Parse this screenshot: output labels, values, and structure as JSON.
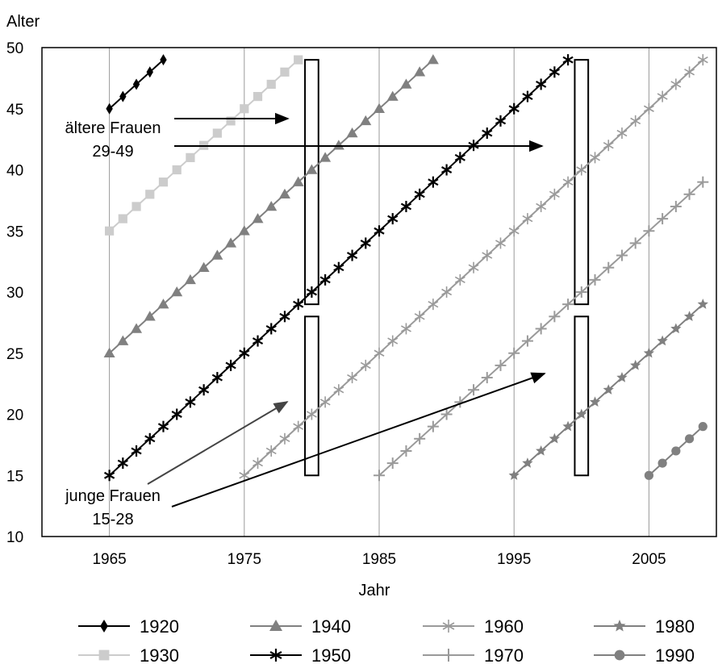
{
  "chart_data": {
    "type": "line",
    "title": "",
    "xlabel": "Jahr",
    "ylabel": "Alter",
    "xlim": [
      1960,
      2010
    ],
    "ylim": [
      10,
      50
    ],
    "xticks": [
      1965,
      1975,
      1985,
      1995,
      2005
    ],
    "yticks": [
      10,
      15,
      20,
      25,
      30,
      35,
      40,
      45,
      50
    ],
    "grid": "vertical",
    "legend_position": "bottom",
    "series": [
      {
        "name": "1920",
        "start_year": 1965,
        "end_year": 1969,
        "start_age": 45,
        "color": "#000000",
        "marker": "diamond"
      },
      {
        "name": "1930",
        "start_year": 1965,
        "end_year": 1979,
        "start_age": 35,
        "color": "#cccccc",
        "marker": "square"
      },
      {
        "name": "1940",
        "start_year": 1965,
        "end_year": 1989,
        "start_age": 25,
        "color": "#808080",
        "marker": "triangle"
      },
      {
        "name": "1950",
        "start_year": 1965,
        "end_year": 1999,
        "start_age": 15,
        "color": "#000000",
        "marker": "asterisk"
      },
      {
        "name": "1960",
        "start_year": 1975,
        "end_year": 2009,
        "start_age": 15,
        "color": "#9a9a9a",
        "marker": "asterisk-light"
      },
      {
        "name": "1970",
        "start_year": 1985,
        "end_year": 2009,
        "start_age": 15,
        "color": "#9a9a9a",
        "marker": "plus"
      },
      {
        "name": "1980",
        "start_year": 1995,
        "end_year": 2009,
        "start_age": 15,
        "color": "#808080",
        "marker": "star"
      },
      {
        "name": "1990",
        "start_year": 2005,
        "end_year": 2009,
        "start_age": 15,
        "color": "#808080",
        "marker": "circle"
      }
    ],
    "boxes": [
      {
        "year_from": 1979.5,
        "year_to": 1980.5,
        "age_from": 29,
        "age_to": 49
      },
      {
        "year_from": 1979.5,
        "year_to": 1980.5,
        "age_from": 15,
        "age_to": 28
      },
      {
        "year_from": 1999.5,
        "year_to": 2000.5,
        "age_from": 29,
        "age_to": 49
      },
      {
        "year_from": 1999.5,
        "year_to": 2000.5,
        "age_from": 15,
        "age_to": 28
      }
    ],
    "annotations": [
      {
        "label": "ältere Frauen",
        "range": "29-49"
      },
      {
        "label": "junge Frauen",
        "range": "15-28"
      }
    ]
  }
}
